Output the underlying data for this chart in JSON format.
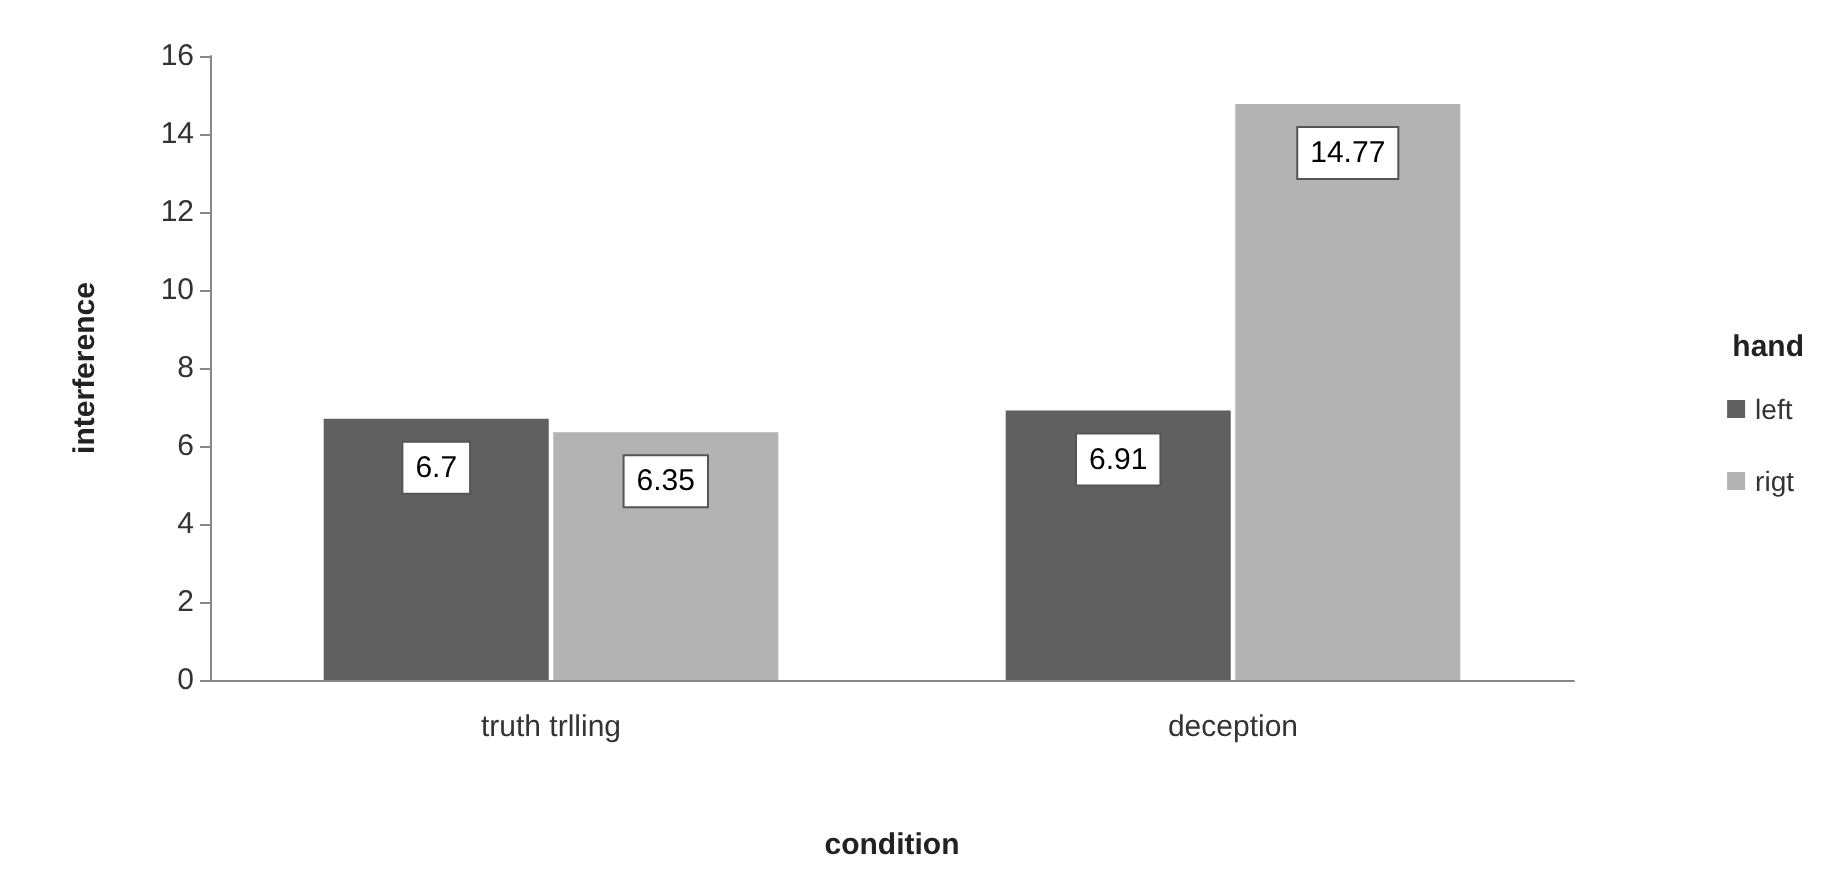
{
  "chart_data": {
    "type": "bar",
    "xlabel": "condition",
    "ylabel": "interference",
    "legend_title": "hand",
    "categories": [
      "truth trlling",
      "deception"
    ],
    "series": [
      {
        "name": "left",
        "color": "#606060",
        "values": [
          6.7,
          6.91
        ]
      },
      {
        "name": "rigt",
        "color": "#b3b3b3",
        "values": [
          6.35,
          14.77
        ]
      }
    ],
    "ylim": [
      0,
      16
    ],
    "yticks": [
      0,
      2,
      4,
      6,
      8,
      10,
      12,
      14,
      16
    ],
    "grid": false,
    "legend": "right",
    "data_labels": true
  }
}
